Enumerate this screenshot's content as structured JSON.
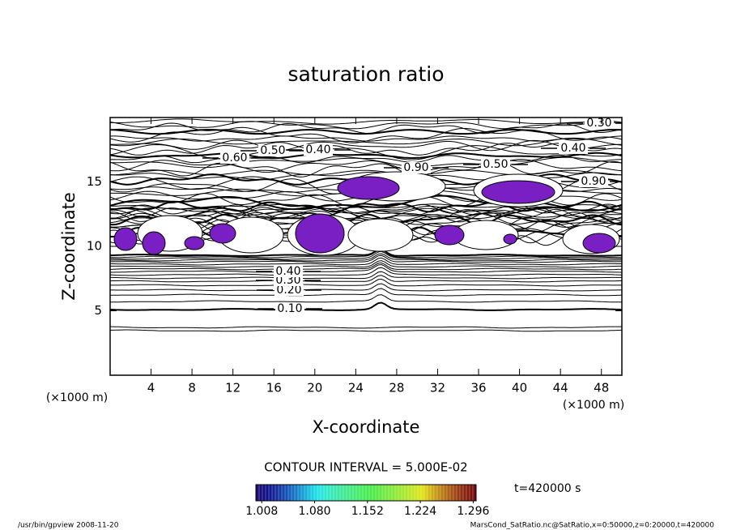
{
  "chart_data": {
    "type": "contour",
    "title": "saturation ratio",
    "x_label": "X-coordinate",
    "y_label": "Z-coordinate",
    "x_unit": "(×1000 m)",
    "y_unit": "(×1000 m)",
    "xlim": [
      0,
      50
    ],
    "ylim": [
      0,
      20
    ],
    "xticks": [
      4,
      8,
      12,
      16,
      20,
      24,
      28,
      32,
      36,
      40,
      44,
      48
    ],
    "yticks": [
      5,
      10,
      15
    ],
    "fill_color": "#7a1fc4",
    "contour_labels": [
      {
        "value": 0.1,
        "label": "0.10"
      },
      {
        "value": 0.2,
        "label": "0.20"
      },
      {
        "value": 0.3,
        "label": "0.30"
      },
      {
        "value": 0.4,
        "label": "0.40"
      },
      {
        "value": 0.5,
        "label": "0.50"
      },
      {
        "value": 0.4,
        "label": "0.40"
      },
      {
        "value": 0.6,
        "label": "0.60"
      },
      {
        "value": 0.4,
        "label": "0.40"
      },
      {
        "value": 0.3,
        "label": "0.30"
      },
      {
        "value": 0.5,
        "label": "0.50"
      },
      {
        "value": 0.9,
        "label": "0.90"
      },
      {
        "value": 0.9,
        "label": "0.90"
      }
    ],
    "contour_interval": "CONTOUR INTERVAL = 5.000E-02",
    "colorbar": {
      "lim": [
        1.0,
        1.3
      ],
      "ticks": [
        {
          "value": 1.008,
          "label": "1.008"
        },
        {
          "value": 1.08,
          "label": "1.080"
        },
        {
          "value": 1.152,
          "label": "1.152"
        },
        {
          "value": 1.224,
          "label": "1.224"
        },
        {
          "value": 1.296,
          "label": "1.296"
        }
      ]
    },
    "time": "t=420000 s"
  },
  "footer": {
    "left": "/usr/bin/gpview  2008-11-20",
    "right": "MarsCond_SatRatio.nc@SatRatio,x=0:50000,z=0:20000,t=420000"
  }
}
